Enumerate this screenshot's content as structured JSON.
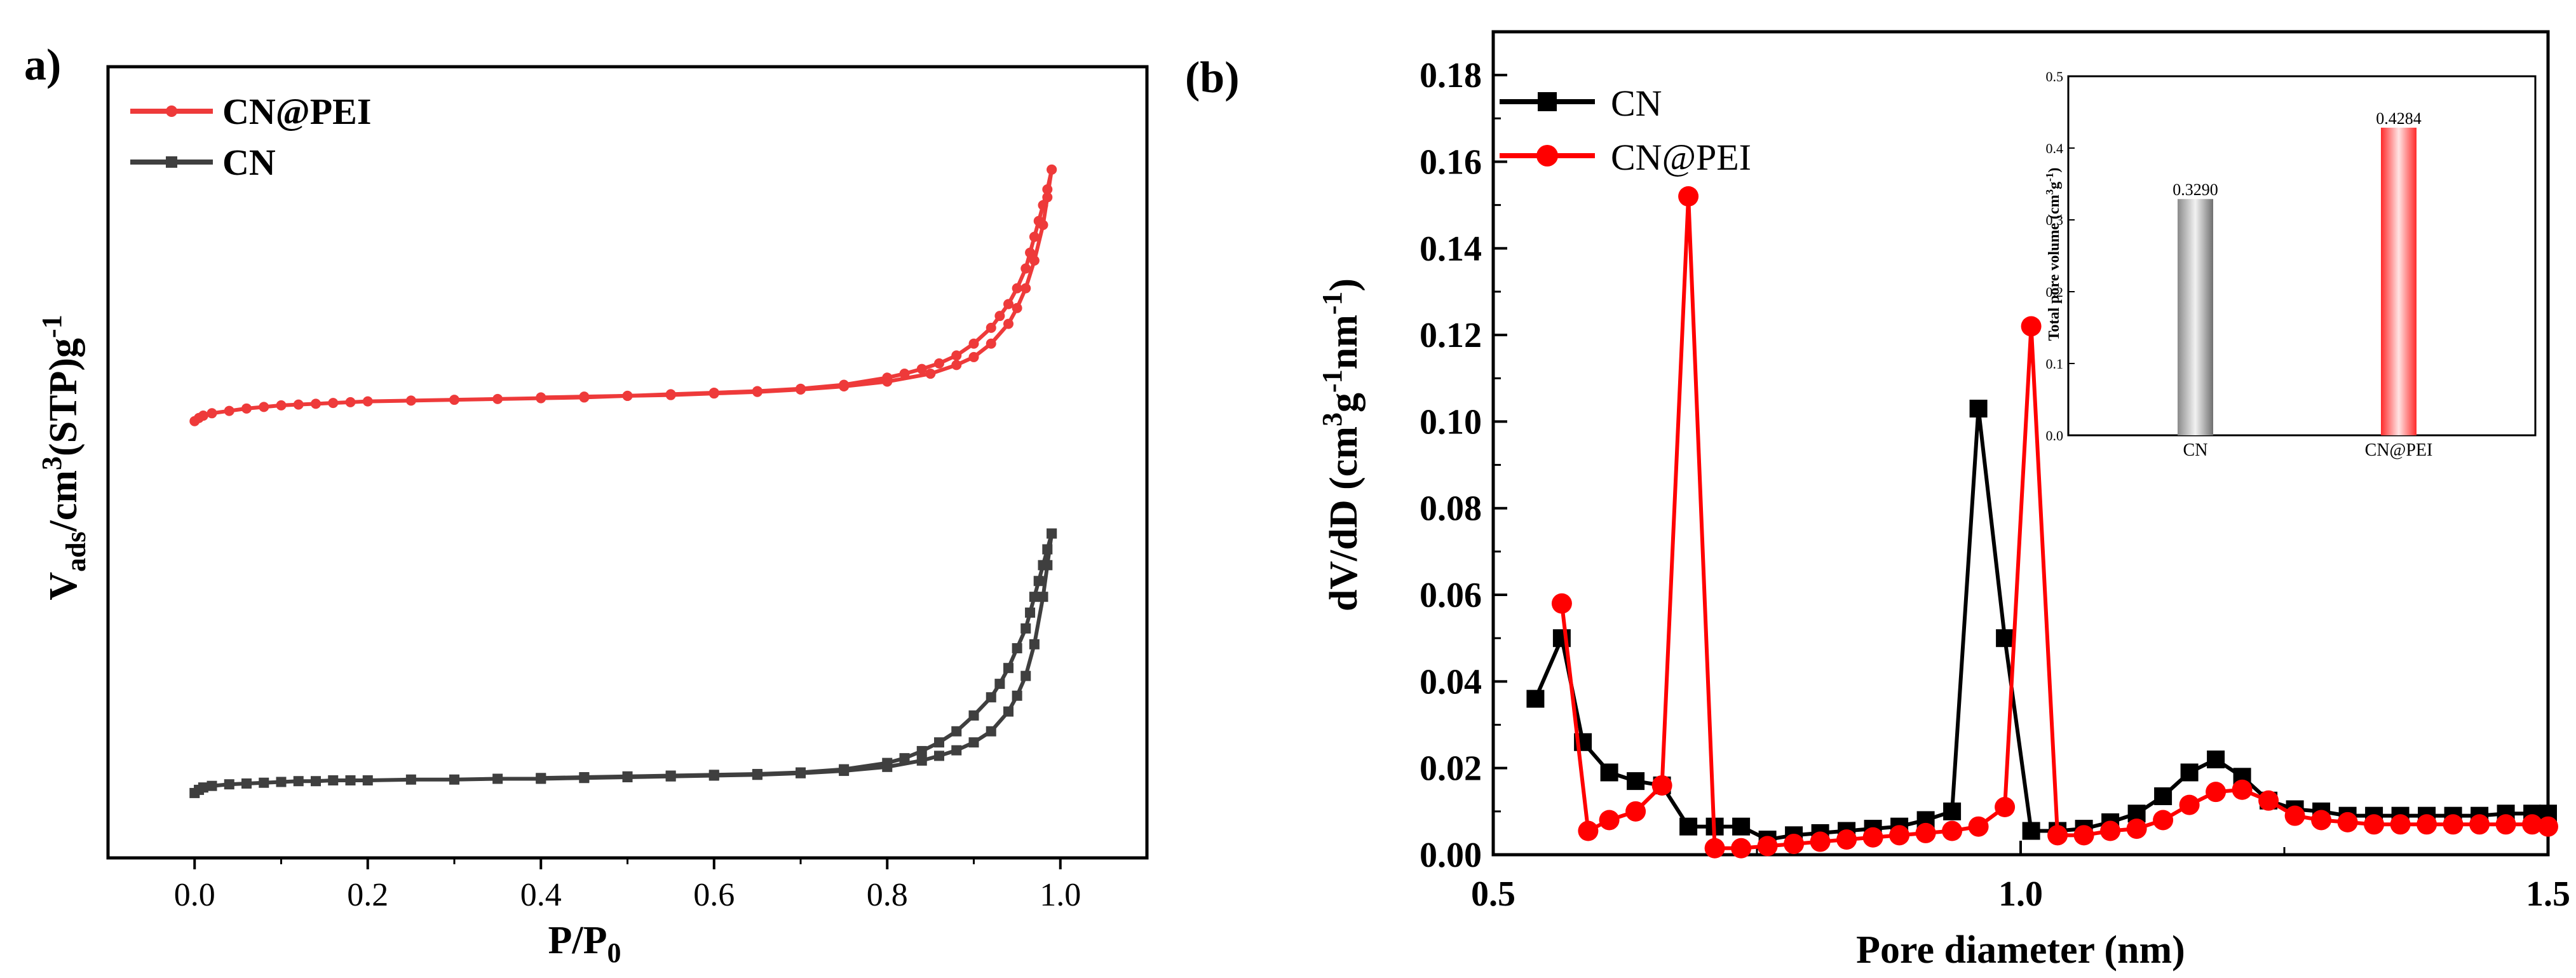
{
  "colors": {
    "cn_a": "#3f3f3f",
    "cnpei": "#ee3a3a",
    "cn_b": "#000000",
    "red": "#ff0000",
    "axis": "#000000"
  },
  "chart_data": [
    {
      "type": "line",
      "panel_label": "a)",
      "xlabel_main": "P/P",
      "xlabel_sub": "0",
      "ylabel_parts": [
        "V",
        "ads",
        "/cm",
        "3",
        "(STP)g",
        "-1"
      ],
      "xlim": [
        -0.1,
        1.1
      ],
      "ylim": [
        0,
        100
      ],
      "xticks": [
        0.0,
        0.2,
        0.4,
        0.6,
        0.8,
        1.0
      ],
      "xtick_labels": [
        "0.0",
        "0.2",
        "0.4",
        "0.6",
        "0.8",
        "1.0"
      ],
      "legend_position": "top-left",
      "series": [
        {
          "name": "CN@PEI",
          "adsorption": [
            [
              0.0,
              55.2
            ],
            [
              0.005,
              55.6
            ],
            [
              0.01,
              55.9
            ],
            [
              0.02,
              56.2
            ],
            [
              0.04,
              56.5
            ],
            [
              0.06,
              56.8
            ],
            [
              0.08,
              57.0
            ],
            [
              0.1,
              57.2
            ],
            [
              0.12,
              57.3
            ],
            [
              0.14,
              57.4
            ],
            [
              0.16,
              57.5
            ],
            [
              0.18,
              57.6
            ],
            [
              0.2,
              57.7
            ],
            [
              0.25,
              57.8
            ],
            [
              0.3,
              57.9
            ],
            [
              0.35,
              58.0
            ],
            [
              0.4,
              58.1
            ],
            [
              0.45,
              58.2
            ],
            [
              0.5,
              58.4
            ],
            [
              0.55,
              58.5
            ],
            [
              0.6,
              58.7
            ],
            [
              0.65,
              58.9
            ],
            [
              0.7,
              59.2
            ],
            [
              0.75,
              59.6
            ],
            [
              0.8,
              60.2
            ],
            [
              0.85,
              61.2
            ],
            [
              0.88,
              62.3
            ],
            [
              0.9,
              63.3
            ],
            [
              0.92,
              65.0
            ],
            [
              0.94,
              67.5
            ],
            [
              0.95,
              69.5
            ],
            [
              0.96,
              72.0
            ],
            [
              0.97,
              75.5
            ],
            [
              0.98,
              80.0
            ],
            [
              0.985,
              83.5
            ],
            [
              0.99,
              87.0
            ]
          ],
          "desorption": [
            [
              0.99,
              87.0
            ],
            [
              0.985,
              84.5
            ],
            [
              0.98,
              82.5
            ],
            [
              0.975,
              80.5
            ],
            [
              0.97,
              78.5
            ],
            [
              0.965,
              76.5
            ],
            [
              0.96,
              74.5
            ],
            [
              0.95,
              72.0
            ],
            [
              0.94,
              70.0
            ],
            [
              0.93,
              68.5
            ],
            [
              0.92,
              67.0
            ],
            [
              0.9,
              65.0
            ],
            [
              0.88,
              63.5
            ],
            [
              0.86,
              62.5
            ],
            [
              0.84,
              61.8
            ],
            [
              0.82,
              61.2
            ],
            [
              0.8,
              60.7
            ],
            [
              0.75,
              59.8
            ],
            [
              0.7,
              59.3
            ],
            [
              0.65,
              59.0
            ],
            [
              0.6,
              58.8
            ],
            [
              0.55,
              58.6
            ],
            [
              0.5,
              58.4
            ],
            [
              0.45,
              58.3
            ],
            [
              0.4,
              58.2
            ]
          ]
        },
        {
          "name": "CN",
          "adsorption": [
            [
              0.0,
              8.2
            ],
            [
              0.005,
              8.6
            ],
            [
              0.01,
              8.9
            ],
            [
              0.02,
              9.1
            ],
            [
              0.04,
              9.3
            ],
            [
              0.06,
              9.4
            ],
            [
              0.08,
              9.5
            ],
            [
              0.1,
              9.6
            ],
            [
              0.12,
              9.7
            ],
            [
              0.14,
              9.7
            ],
            [
              0.16,
              9.8
            ],
            [
              0.18,
              9.8
            ],
            [
              0.2,
              9.8
            ],
            [
              0.25,
              9.9
            ],
            [
              0.3,
              9.9
            ],
            [
              0.35,
              10.0
            ],
            [
              0.4,
              10.0
            ],
            [
              0.45,
              10.1
            ],
            [
              0.5,
              10.2
            ],
            [
              0.55,
              10.3
            ],
            [
              0.6,
              10.4
            ],
            [
              0.65,
              10.5
            ],
            [
              0.7,
              10.7
            ],
            [
              0.75,
              11.0
            ],
            [
              0.8,
              11.5
            ],
            [
              0.84,
              12.3
            ],
            [
              0.86,
              12.9
            ],
            [
              0.88,
              13.6
            ],
            [
              0.9,
              14.6
            ],
            [
              0.92,
              16.0
            ],
            [
              0.94,
              18.5
            ],
            [
              0.95,
              20.5
            ],
            [
              0.96,
              23.0
            ],
            [
              0.97,
              27.0
            ],
            [
              0.98,
              33.0
            ],
            [
              0.985,
              37.0
            ],
            [
              0.99,
              41.0
            ]
          ],
          "desorption": [
            [
              0.99,
              41.0
            ],
            [
              0.985,
              39.0
            ],
            [
              0.98,
              37.0
            ],
            [
              0.975,
              35.0
            ],
            [
              0.97,
              33.0
            ],
            [
              0.965,
              31.0
            ],
            [
              0.96,
              29.0
            ],
            [
              0.95,
              26.5
            ],
            [
              0.94,
              24.0
            ],
            [
              0.93,
              22.0
            ],
            [
              0.92,
              20.3
            ],
            [
              0.9,
              18.0
            ],
            [
              0.88,
              16.0
            ],
            [
              0.86,
              14.6
            ],
            [
              0.84,
              13.5
            ],
            [
              0.82,
              12.6
            ],
            [
              0.8,
              12.0
            ],
            [
              0.75,
              11.2
            ],
            [
              0.7,
              10.8
            ],
            [
              0.65,
              10.6
            ],
            [
              0.6,
              10.5
            ],
            [
              0.55,
              10.4
            ],
            [
              0.5,
              10.3
            ],
            [
              0.45,
              10.2
            ],
            [
              0.4,
              10.1
            ]
          ]
        }
      ]
    },
    {
      "type": "line",
      "panel_label": "(b)",
      "xlabel": "Pore diameter (nm)",
      "ylabel_parts": [
        "dV/dD (cm",
        "3",
        "g",
        "-1",
        "nm",
        "-1",
        ")"
      ],
      "xlim": [
        0.5,
        1.5
      ],
      "ylim": [
        0.0,
        0.19
      ],
      "xticks": [
        0.5,
        1.0,
        1.5
      ],
      "xtick_labels": [
        "0.5",
        "1.0",
        "1.5"
      ],
      "yticks": [
        0.0,
        0.02,
        0.04,
        0.06,
        0.08,
        0.1,
        0.12,
        0.14,
        0.16,
        0.18
      ],
      "ytick_labels": [
        "0.00",
        "0.02",
        "0.04",
        "0.06",
        "0.08",
        "0.10",
        "0.12",
        "0.14",
        "0.16",
        "0.18"
      ],
      "legend_position": "top-left",
      "series": [
        {
          "name": "CN",
          "marker": "square",
          "x": [
            0.54,
            0.565,
            0.585,
            0.61,
            0.635,
            0.66,
            0.685,
            0.71,
            0.735,
            0.76,
            0.785,
            0.81,
            0.835,
            0.86,
            0.885,
            0.91,
            0.935,
            0.96,
            0.985,
            1.01,
            1.035,
            1.06,
            1.085,
            1.11,
            1.135,
            1.16,
            1.185,
            1.21,
            1.235,
            1.26,
            1.285,
            1.31,
            1.335,
            1.36,
            1.385,
            1.41,
            1.435,
            1.46,
            1.485,
            1.5
          ],
          "y": [
            0.036,
            0.05,
            0.026,
            0.019,
            0.017,
            0.016,
            0.0065,
            0.0065,
            0.0065,
            0.0035,
            0.0045,
            0.005,
            0.0055,
            0.006,
            0.0065,
            0.008,
            0.01,
            0.103,
            0.05,
            0.0055,
            0.0055,
            0.006,
            0.0075,
            0.0095,
            0.0135,
            0.019,
            0.022,
            0.018,
            0.0125,
            0.0105,
            0.01,
            0.009,
            0.009,
            0.009,
            0.009,
            0.009,
            0.009,
            0.0095,
            0.0095,
            0.0095
          ]
        },
        {
          "name": "CN@PEI",
          "marker": "circle",
          "x": [
            0.565,
            0.59,
            0.61,
            0.635,
            0.66,
            0.685,
            0.71,
            0.735,
            0.76,
            0.785,
            0.81,
            0.835,
            0.86,
            0.885,
            0.91,
            0.935,
            0.96,
            0.985,
            1.01,
            1.035,
            1.06,
            1.085,
            1.11,
            1.135,
            1.16,
            1.185,
            1.21,
            1.235,
            1.26,
            1.285,
            1.31,
            1.335,
            1.36,
            1.385,
            1.41,
            1.435,
            1.46,
            1.485,
            1.5
          ],
          "y": [
            0.058,
            0.0055,
            0.008,
            0.01,
            0.016,
            0.152,
            0.0015,
            0.0015,
            0.002,
            0.0025,
            0.003,
            0.0035,
            0.004,
            0.0045,
            0.005,
            0.0055,
            0.0065,
            0.011,
            0.122,
            0.0045,
            0.0045,
            0.0055,
            0.006,
            0.008,
            0.0115,
            0.0145,
            0.015,
            0.0125,
            0.009,
            0.008,
            0.0075,
            0.007,
            0.007,
            0.007,
            0.007,
            0.007,
            0.007,
            0.007,
            0.0065
          ]
        }
      ],
      "inset": {
        "type": "bar",
        "ylabel_parts": [
          "Total pore volume (cm",
          "3",
          "g",
          "-1",
          ")"
        ],
        "ylim": [
          0.0,
          0.5
        ],
        "yticks": [
          0.0,
          0.1,
          0.2,
          0.3,
          0.4,
          0.5
        ],
        "ytick_labels": [
          "0.0",
          "0.1",
          "0.2",
          "0.3",
          "0.4",
          "0.5"
        ],
        "categories": [
          "CN",
          "CN@PEI"
        ],
        "values": [
          0.329,
          0.4284
        ],
        "value_labels": [
          "0.3290",
          "0.4284"
        ]
      }
    }
  ]
}
